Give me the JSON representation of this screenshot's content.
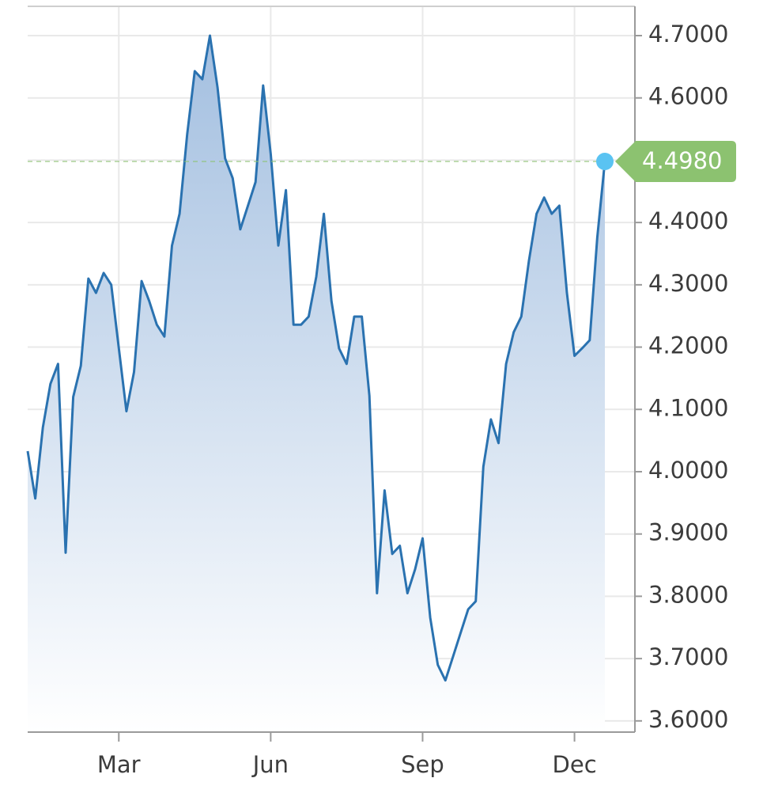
{
  "chart_data": {
    "type": "area",
    "categories": [
      null,
      null,
      null,
      null,
      null,
      null,
      null,
      null,
      null,
      null,
      null,
      null,
      "Mar",
      null,
      null,
      null,
      null,
      null,
      null,
      null,
      null,
      null,
      null,
      null,
      null,
      null,
      null,
      null,
      null,
      null,
      null,
      null,
      "Jun",
      null,
      null,
      null,
      null,
      null,
      null,
      null,
      null,
      null,
      null,
      null,
      null,
      null,
      null,
      null,
      null,
      null,
      null,
      null,
      "Sep",
      null,
      null,
      null,
      null,
      null,
      null,
      null,
      null,
      null,
      null,
      null,
      null,
      null,
      null,
      null,
      null,
      null,
      null,
      null,
      "Dec",
      null,
      null,
      null,
      null
    ],
    "series": [
      {
        "color": "#2a72b0",
        "values": [
          4.033,
          3.957,
          4.071,
          4.141,
          4.173,
          3.87,
          4.12,
          4.17,
          4.31,
          4.287,
          4.319,
          4.3,
          4.198,
          4.097,
          4.16,
          4.306,
          4.274,
          4.236,
          4.217,
          4.363,
          4.414,
          4.541,
          4.643,
          4.63,
          4.7,
          4.617,
          4.503,
          4.471,
          4.389,
          4.427,
          4.465,
          4.62,
          4.51,
          4.363,
          4.452,
          4.236,
          4.236,
          4.249,
          4.313,
          4.414,
          4.274,
          4.198,
          4.173,
          4.249,
          4.249,
          4.122,
          3.805,
          3.97,
          3.868,
          3.881,
          3.805,
          3.843,
          3.893,
          3.766,
          3.69,
          3.665,
          3.703,
          3.741,
          3.779,
          3.792,
          4.008,
          4.084,
          4.046,
          4.173,
          4.224,
          4.249,
          4.338,
          4.414,
          4.44,
          4.414,
          4.427,
          4.287,
          4.186,
          4.198,
          4.211,
          4.376,
          4.498
        ]
      }
    ],
    "last_price": {
      "value": 4.498,
      "label": "4.4980",
      "color": "#8cc270"
    },
    "ylim": [
      3.582,
      4.747
    ],
    "yticks": [
      {
        "value": 3.6,
        "label": "3.6000"
      },
      {
        "value": 3.7,
        "label": "3.7000"
      },
      {
        "value": 3.8,
        "label": "3.8000"
      },
      {
        "value": 3.9,
        "label": "3.9000"
      },
      {
        "value": 4.0,
        "label": "4.0000"
      },
      {
        "value": 4.1,
        "label": "4.1000"
      },
      {
        "value": 4.2,
        "label": "4.2000"
      },
      {
        "value": 4.3,
        "label": "4.3000"
      },
      {
        "value": 4.4,
        "label": "4.4000"
      },
      {
        "value": 4.5,
        "label": "4.5000"
      },
      {
        "value": 4.6,
        "label": "4.6000"
      },
      {
        "value": 4.7,
        "label": "4.7000"
      }
    ],
    "y_axis_side": "right",
    "grid": true
  }
}
